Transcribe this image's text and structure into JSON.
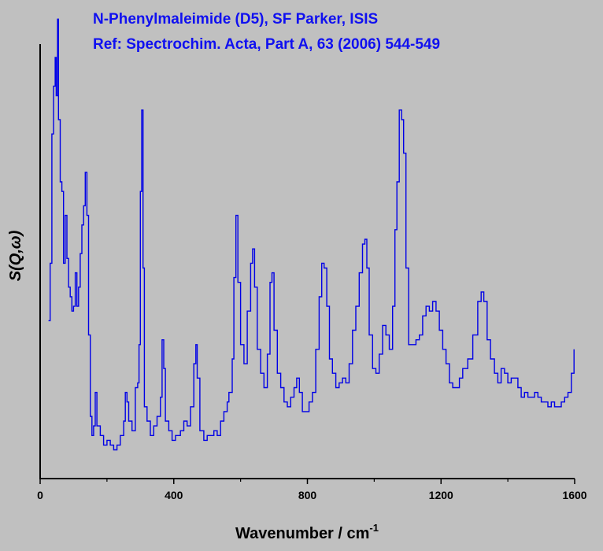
{
  "chart_data": {
    "type": "line",
    "title_line1": "N-Phenylmaleimide (D5), SF Parker, ISIS",
    "title_line2": "Ref: Spectrochim. Acta, Part A, 63 (2006) 544-549",
    "xlabel_main": "Wavenumber / cm",
    "xlabel_sup": "-1",
    "ylabel": "S(Q,ω)",
    "xlim": [
      0,
      1600
    ],
    "ylim": [
      0,
      1
    ],
    "x_ticks": [
      "0",
      "400",
      "800",
      "1200",
      "1600"
    ],
    "y_ticks": [],
    "grid": false,
    "colors": {
      "line": "#0000e6",
      "title": "#1010f0",
      "background": "#c0c0c0",
      "axis": "#000000"
    },
    "series": [
      {
        "points": [
          [
            25,
            0.33
          ],
          [
            30,
            0.45
          ],
          [
            35,
            0.72
          ],
          [
            40,
            0.82
          ],
          [
            45,
            0.88
          ],
          [
            48,
            0.8
          ],
          [
            52,
            0.96
          ],
          [
            55,
            0.75
          ],
          [
            60,
            0.62
          ],
          [
            65,
            0.6
          ],
          [
            70,
            0.45
          ],
          [
            75,
            0.55
          ],
          [
            80,
            0.46
          ],
          [
            85,
            0.4
          ],
          [
            90,
            0.38
          ],
          [
            95,
            0.35
          ],
          [
            100,
            0.36
          ],
          [
            105,
            0.43
          ],
          [
            110,
            0.36
          ],
          [
            115,
            0.4
          ],
          [
            120,
            0.47
          ],
          [
            125,
            0.53
          ],
          [
            130,
            0.57
          ],
          [
            135,
            0.64
          ],
          [
            140,
            0.55
          ],
          [
            145,
            0.3
          ],
          [
            150,
            0.13
          ],
          [
            155,
            0.09
          ],
          [
            160,
            0.11
          ],
          [
            165,
            0.18
          ],
          [
            170,
            0.11
          ],
          [
            180,
            0.09
          ],
          [
            190,
            0.07
          ],
          [
            200,
            0.08
          ],
          [
            210,
            0.07
          ],
          [
            220,
            0.06
          ],
          [
            230,
            0.07
          ],
          [
            240,
            0.09
          ],
          [
            250,
            0.12
          ],
          [
            255,
            0.18
          ],
          [
            260,
            0.16
          ],
          [
            265,
            0.12
          ],
          [
            275,
            0.1
          ],
          [
            285,
            0.19
          ],
          [
            292,
            0.2
          ],
          [
            296,
            0.28
          ],
          [
            300,
            0.6
          ],
          [
            304,
            0.77
          ],
          [
            308,
            0.44
          ],
          [
            312,
            0.15
          ],
          [
            320,
            0.12
          ],
          [
            330,
            0.09
          ],
          [
            340,
            0.11
          ],
          [
            350,
            0.13
          ],
          [
            360,
            0.17
          ],
          [
            365,
            0.29
          ],
          [
            370,
            0.23
          ],
          [
            375,
            0.12
          ],
          [
            385,
            0.1
          ],
          [
            395,
            0.08
          ],
          [
            405,
            0.09
          ],
          [
            420,
            0.1
          ],
          [
            430,
            0.12
          ],
          [
            440,
            0.11
          ],
          [
            450,
            0.15
          ],
          [
            460,
            0.24
          ],
          [
            466,
            0.28
          ],
          [
            470,
            0.21
          ],
          [
            478,
            0.1
          ],
          [
            490,
            0.08
          ],
          [
            500,
            0.09
          ],
          [
            510,
            0.09
          ],
          [
            520,
            0.1
          ],
          [
            530,
            0.09
          ],
          [
            540,
            0.12
          ],
          [
            550,
            0.14
          ],
          [
            560,
            0.16
          ],
          [
            565,
            0.18
          ],
          [
            575,
            0.25
          ],
          [
            580,
            0.42
          ],
          [
            586,
            0.55
          ],
          [
            592,
            0.41
          ],
          [
            600,
            0.28
          ],
          [
            610,
            0.24
          ],
          [
            620,
            0.35
          ],
          [
            630,
            0.45
          ],
          [
            636,
            0.48
          ],
          [
            642,
            0.4
          ],
          [
            650,
            0.27
          ],
          [
            660,
            0.22
          ],
          [
            670,
            0.19
          ],
          [
            680,
            0.26
          ],
          [
            688,
            0.41
          ],
          [
            694,
            0.43
          ],
          [
            700,
            0.31
          ],
          [
            710,
            0.22
          ],
          [
            720,
            0.19
          ],
          [
            730,
            0.16
          ],
          [
            740,
            0.15
          ],
          [
            750,
            0.17
          ],
          [
            760,
            0.19
          ],
          [
            768,
            0.21
          ],
          [
            776,
            0.18
          ],
          [
            785,
            0.14
          ],
          [
            795,
            0.14
          ],
          [
            805,
            0.16
          ],
          [
            815,
            0.18
          ],
          [
            825,
            0.27
          ],
          [
            835,
            0.38
          ],
          [
            843,
            0.45
          ],
          [
            850,
            0.44
          ],
          [
            858,
            0.36
          ],
          [
            866,
            0.25
          ],
          [
            875,
            0.22
          ],
          [
            885,
            0.19
          ],
          [
            895,
            0.2
          ],
          [
            905,
            0.21
          ],
          [
            915,
            0.2
          ],
          [
            925,
            0.24
          ],
          [
            935,
            0.31
          ],
          [
            945,
            0.36
          ],
          [
            955,
            0.43
          ],
          [
            965,
            0.49
          ],
          [
            972,
            0.5
          ],
          [
            978,
            0.44
          ],
          [
            985,
            0.3
          ],
          [
            995,
            0.23
          ],
          [
            1005,
            0.22
          ],
          [
            1015,
            0.26
          ],
          [
            1025,
            0.32
          ],
          [
            1035,
            0.3
          ],
          [
            1045,
            0.27
          ],
          [
            1055,
            0.36
          ],
          [
            1062,
            0.52
          ],
          [
            1068,
            0.62
          ],
          [
            1075,
            0.77
          ],
          [
            1082,
            0.75
          ],
          [
            1088,
            0.68
          ],
          [
            1095,
            0.44
          ],
          [
            1103,
            0.28
          ],
          [
            1115,
            0.28
          ],
          [
            1125,
            0.29
          ],
          [
            1135,
            0.3
          ],
          [
            1145,
            0.34
          ],
          [
            1155,
            0.36
          ],
          [
            1165,
            0.35
          ],
          [
            1175,
            0.37
          ],
          [
            1185,
            0.35
          ],
          [
            1195,
            0.31
          ],
          [
            1205,
            0.27
          ],
          [
            1215,
            0.24
          ],
          [
            1225,
            0.2
          ],
          [
            1235,
            0.19
          ],
          [
            1245,
            0.19
          ],
          [
            1255,
            0.21
          ],
          [
            1265,
            0.23
          ],
          [
            1280,
            0.25
          ],
          [
            1295,
            0.3
          ],
          [
            1310,
            0.37
          ],
          [
            1320,
            0.39
          ],
          [
            1328,
            0.37
          ],
          [
            1338,
            0.29
          ],
          [
            1348,
            0.25
          ],
          [
            1360,
            0.22
          ],
          [
            1370,
            0.2
          ],
          [
            1380,
            0.23
          ],
          [
            1390,
            0.22
          ],
          [
            1400,
            0.2
          ],
          [
            1410,
            0.21
          ],
          [
            1420,
            0.21
          ],
          [
            1430,
            0.19
          ],
          [
            1440,
            0.17
          ],
          [
            1450,
            0.18
          ],
          [
            1460,
            0.17
          ],
          [
            1470,
            0.17
          ],
          [
            1480,
            0.18
          ],
          [
            1490,
            0.17
          ],
          [
            1500,
            0.16
          ],
          [
            1510,
            0.16
          ],
          [
            1520,
            0.15
          ],
          [
            1530,
            0.16
          ],
          [
            1540,
            0.15
          ],
          [
            1550,
            0.15
          ],
          [
            1560,
            0.16
          ],
          [
            1570,
            0.17
          ],
          [
            1580,
            0.18
          ],
          [
            1590,
            0.22
          ],
          [
            1598,
            0.27
          ]
        ]
      }
    ]
  }
}
